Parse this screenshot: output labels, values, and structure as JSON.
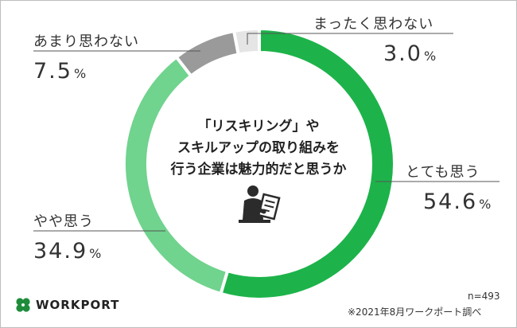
{
  "chart_data": {
    "type": "pie",
    "donut": true,
    "title_lines": [
      "「リスキリング」や",
      "スキルアップの取り組みを",
      "行う企業は魅力的だと思うか"
    ],
    "slices": [
      {
        "label": "とても思う",
        "value": 54.6,
        "display": "54.6",
        "color": "#1db34a"
      },
      {
        "label": "やや思う",
        "value": 34.9,
        "display": "34.9",
        "color": "#70d38e"
      },
      {
        "label": "あまり思わない",
        "value": 7.5,
        "display": "7.5",
        "color": "#9a9a9a"
      },
      {
        "label": "まったく思わない",
        "value": 3.0,
        "display": "3.0",
        "color": "#e5e5e5"
      }
    ],
    "unit": "%",
    "note_n": "n=493",
    "source": "※2021年8月ワークポート調べ"
  },
  "brand": {
    "name": "WORKPORT",
    "logo_icon": "four-leaf-clover-icon",
    "logo_color": "#1e8c3a"
  },
  "center_icon": "person-reading-document-icon"
}
